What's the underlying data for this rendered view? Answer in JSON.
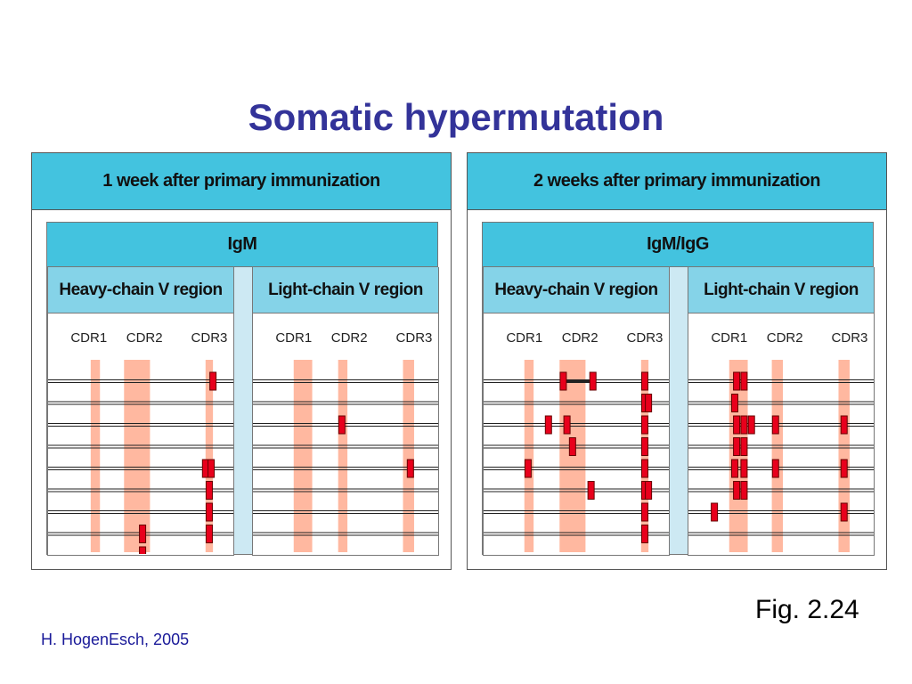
{
  "slide": {
    "title": "Somatic hypermutation",
    "fig_ref": "Fig. 2.24",
    "credit": "H. HogenEsch, 2005"
  },
  "colors": {
    "title": "#333399",
    "header_blue": "#43c3df",
    "chain_header_blue": "#85d3e8",
    "cdr_band": "#ffb8a0",
    "mutation": "#e8001c"
  },
  "cdr_labels": [
    "CDR1",
    "CDR2",
    "CDR3"
  ],
  "panels": [
    {
      "header": "1 week after primary  immunization",
      "antibody_class": "IgM",
      "chains": [
        {
          "label": "Heavy-chain V region",
          "bands": [
            {
              "name": "CDR1",
              "start": 0.23,
              "end": 0.28
            },
            {
              "name": "CDR2",
              "start": 0.41,
              "end": 0.55
            },
            {
              "name": "CDR3",
              "start": 0.85,
              "end": 0.89
            }
          ],
          "sequences": [
            {
              "mutations": [
                0.89
              ]
            },
            {
              "mutations": []
            },
            {
              "mutations": []
            },
            {
              "mutations": [],
              "_": 0
            },
            {
              "mutations": [
                0.85,
                0.88
              ]
            },
            {
              "mutations": [
                0.87
              ]
            },
            {
              "mutations": [
                0.87
              ]
            },
            {
              "mutations": [
                0.51,
                0.87
              ]
            },
            {
              "mutations": [
                0.51
              ]
            }
          ]
        },
        {
          "label": "Light-chain V region",
          "bands": [
            {
              "name": "CDR1",
              "start": 0.22,
              "end": 0.32
            },
            {
              "name": "CDR2",
              "start": 0.46,
              "end": 0.51
            },
            {
              "name": "CDR3",
              "start": 0.81,
              "end": 0.87
            }
          ],
          "sequences": [
            {
              "mutations": []
            },
            {
              "mutations": []
            },
            {
              "mutations": [
                0.48
              ]
            },
            {
              "mutations": []
            },
            {
              "mutations": [
                0.85
              ]
            },
            {
              "mutations": []
            },
            {
              "mutations": []
            },
            {
              "mutations": []
            },
            {
              "mutations": []
            }
          ]
        }
      ]
    },
    {
      "header": "2 weeks after primary immunization",
      "antibody_class": "IgM/IgG",
      "chains": [
        {
          "label": "Heavy-chain V region",
          "bands": [
            {
              "name": "CDR1",
              "start": 0.22,
              "end": 0.27
            },
            {
              "name": "CDR2",
              "start": 0.41,
              "end": 0.55
            },
            {
              "name": "CDR3",
              "start": 0.85,
              "end": 0.89
            }
          ],
          "sequences": [
            {
              "mutations": [
                0.43,
                0.59,
                0.87
              ],
              "linked": [
                0.43,
                0.59
              ]
            },
            {
              "mutations": [
                0.87,
                0.89
              ]
            },
            {
              "mutations": [
                0.35,
                0.45,
                0.87
              ]
            },
            {
              "mutations": [
                0.48,
                0.87
              ]
            },
            {
              "mutations": [
                0.24,
                0.87
              ]
            },
            {
              "mutations": [
                0.58,
                0.87,
                0.89
              ]
            },
            {
              "mutations": [
                0.87
              ]
            },
            {
              "mutations": [
                0.87
              ]
            }
          ]
        },
        {
          "label": "Light-chain V region",
          "bands": [
            {
              "name": "CDR1",
              "start": 0.22,
              "end": 0.32
            },
            {
              "name": "CDR2",
              "start": 0.45,
              "end": 0.51
            },
            {
              "name": "CDR3",
              "start": 0.81,
              "end": 0.87
            }
          ],
          "sequences": [
            {
              "mutations": [
                0.26,
                0.3
              ]
            },
            {
              "mutations": [
                0.25
              ]
            },
            {
              "mutations": [
                0.26,
                0.3,
                0.34,
                0.47,
                0.84
              ]
            },
            {
              "mutations": [
                0.26,
                0.3
              ]
            },
            {
              "mutations": [
                0.25,
                0.3,
                0.47,
                0.84
              ]
            },
            {
              "mutations": [
                0.26,
                0.3
              ]
            },
            {
              "mutations": [
                0.14,
                0.84
              ]
            },
            {
              "mutations": []
            }
          ]
        }
      ]
    }
  ]
}
